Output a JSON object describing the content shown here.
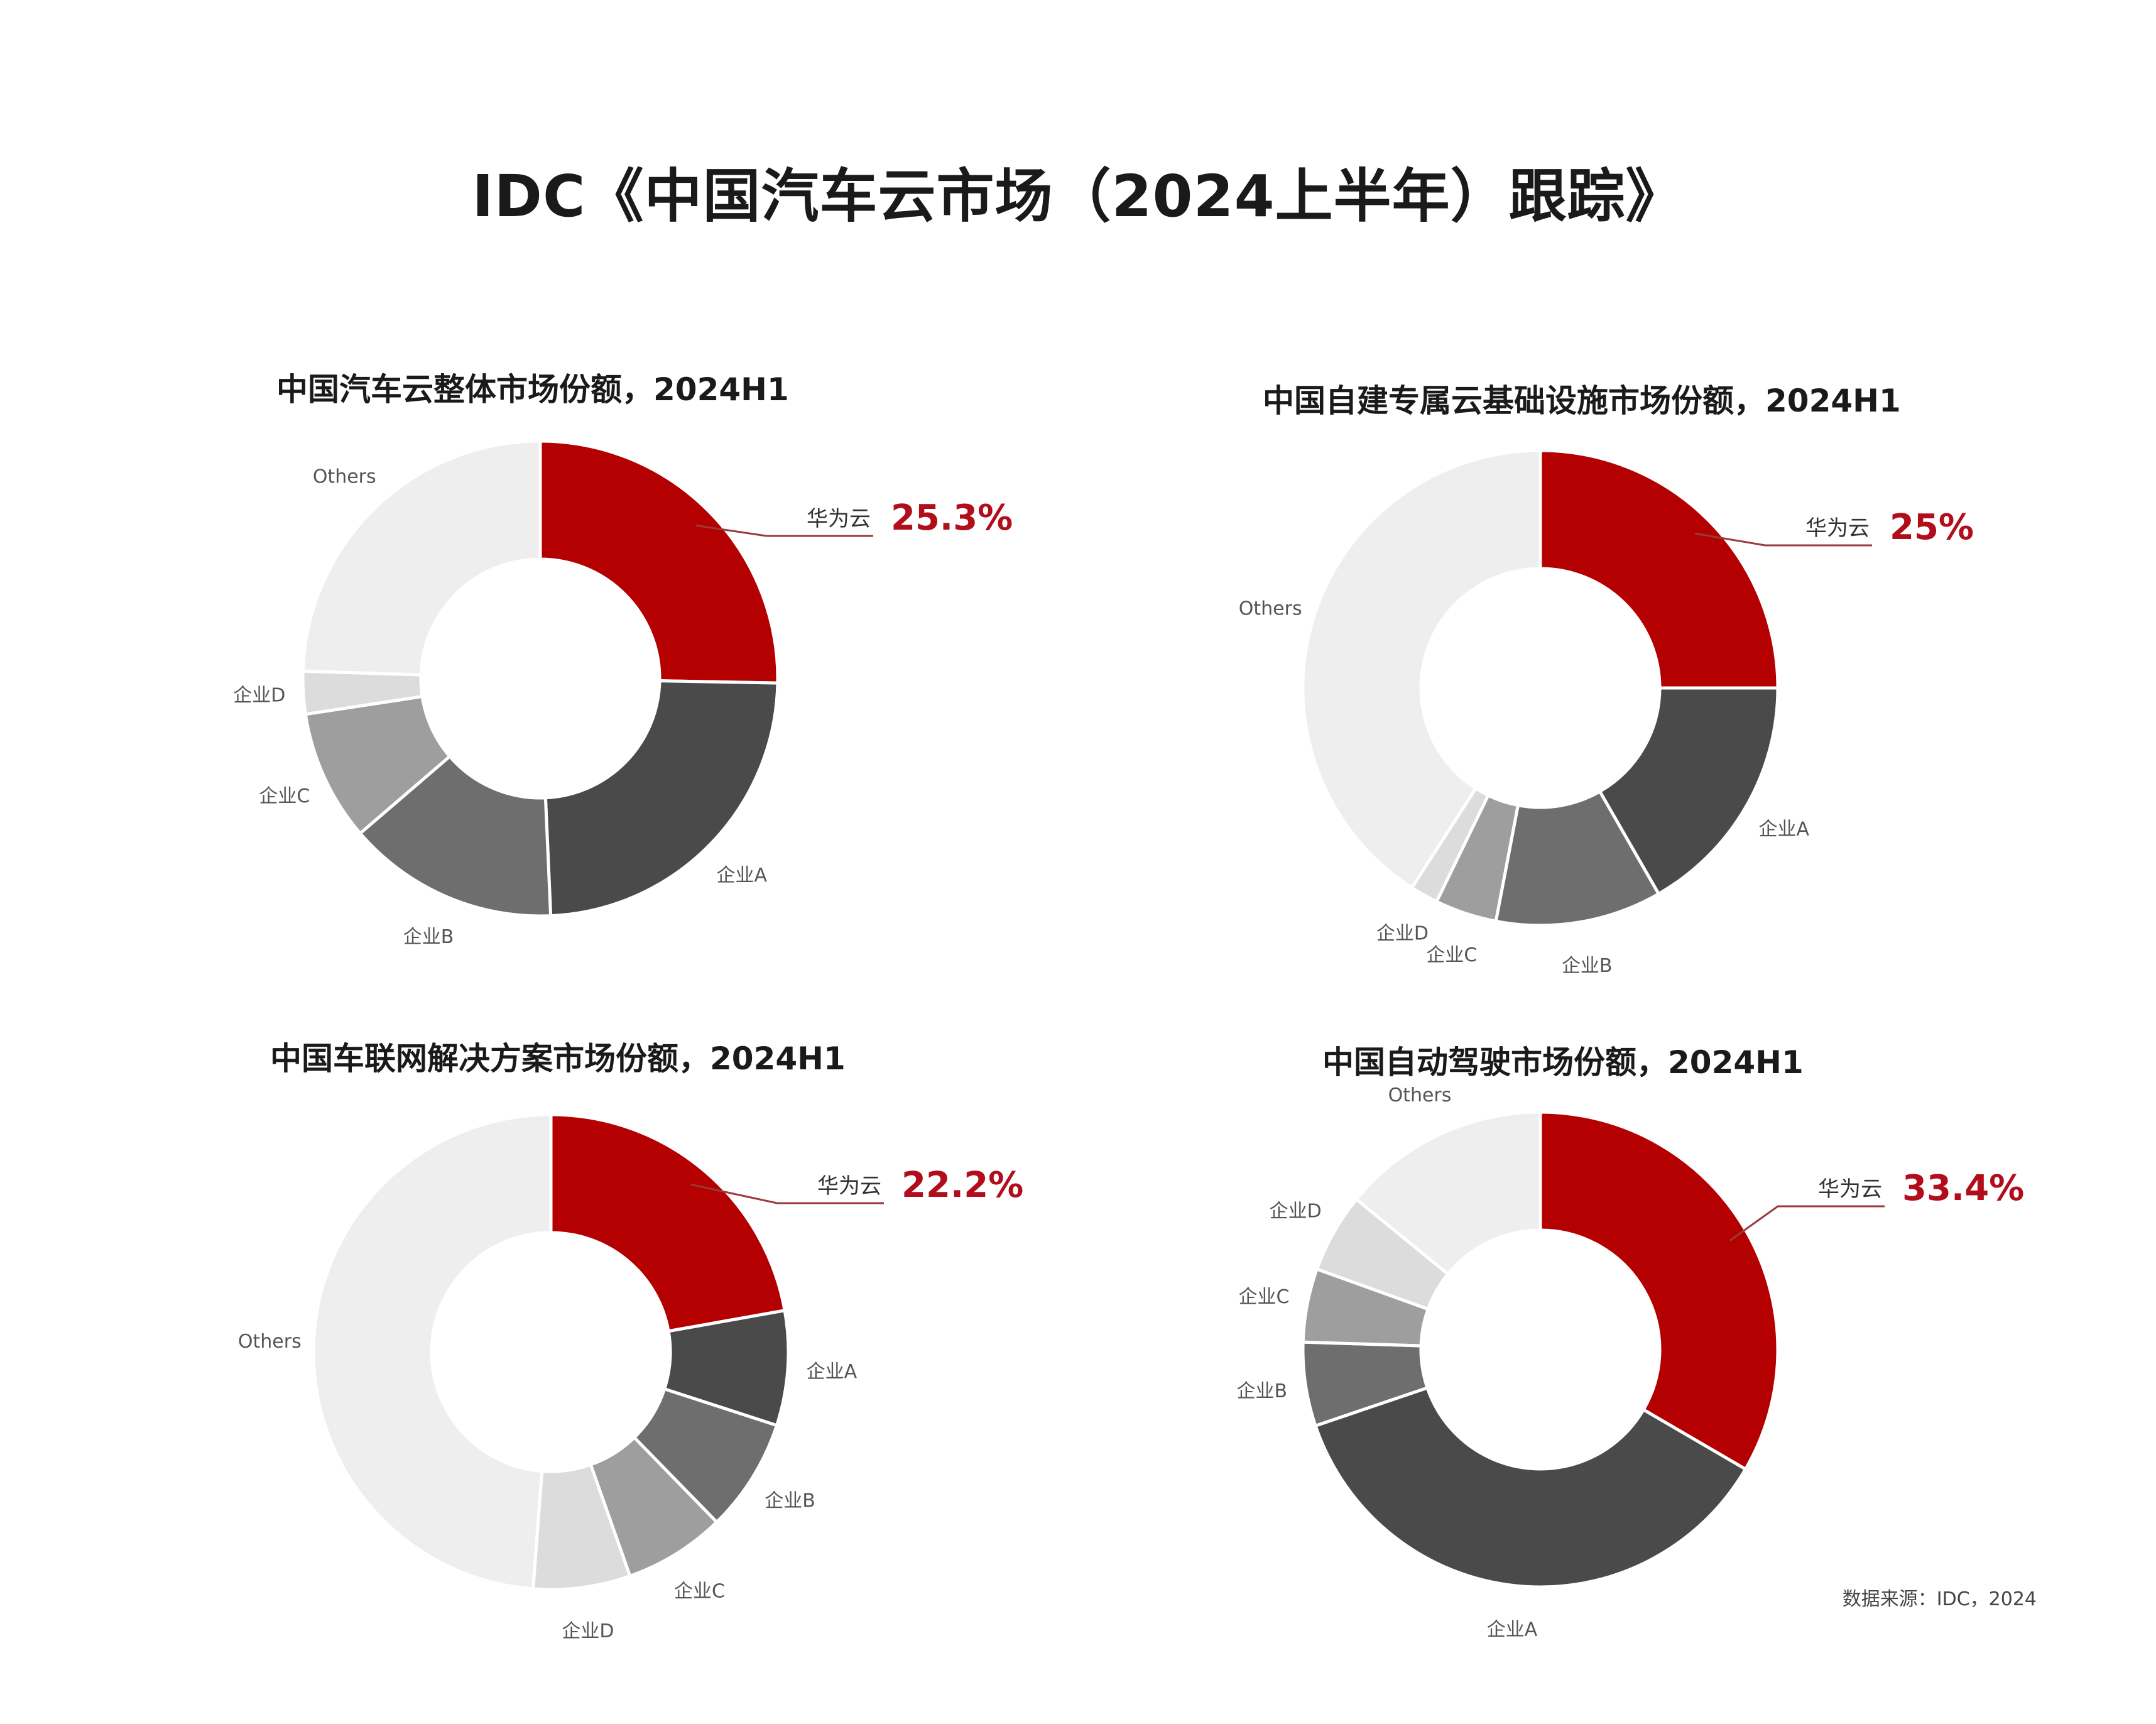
{
  "title": "IDC《中国汽车云市场（2024上半年）跟踪》",
  "source": "数据来源：IDC，2024",
  "colors": {
    "huawei": "#b40000",
    "a": "#4a4a4a",
    "b": "#6e6e6e",
    "c": "#9e9e9e",
    "d": "#dcdcdc",
    "others": "#eeeeee"
  },
  "chart_data": [
    {
      "type": "pie",
      "title": "中国汽车云整体市场份额，2024H1",
      "highlight": {
        "label": "华为云",
        "value_text": "25.3%"
      },
      "slices": [
        {
          "label": "华为云",
          "value": 25.3,
          "color": "#b40000"
        },
        {
          "label": "企业A",
          "value": 24.0,
          "color": "#4a4a4a"
        },
        {
          "label": "企业B",
          "value": 14.4,
          "color": "#6e6e6e"
        },
        {
          "label": "企业C",
          "value": 8.9,
          "color": "#9e9e9e"
        },
        {
          "label": "企业D",
          "value": 2.9,
          "color": "#dcdcdc"
        },
        {
          "label": "Others",
          "value": 24.5,
          "color": "#eeeeee"
        }
      ]
    },
    {
      "type": "pie",
      "title": "中国自建专属云基础设施市场份额，2024H1",
      "highlight": {
        "label": "华为云",
        "value_text": "25%"
      },
      "slices": [
        {
          "label": "华为云",
          "value": 25.0,
          "color": "#b40000"
        },
        {
          "label": "企业A",
          "value": 16.7,
          "color": "#4a4a4a"
        },
        {
          "label": "企业B",
          "value": 11.3,
          "color": "#6e6e6e"
        },
        {
          "label": "企业C",
          "value": 4.2,
          "color": "#9e9e9e"
        },
        {
          "label": "企业D",
          "value": 1.9,
          "color": "#dcdcdc"
        },
        {
          "label": "Others",
          "value": 40.9,
          "color": "#eeeeee"
        }
      ]
    },
    {
      "type": "pie",
      "title": "中国车联网解决方案市场份额，2024H1",
      "highlight": {
        "label": "华为云",
        "value_text": "22.2%"
      },
      "slices": [
        {
          "label": "华为云",
          "value": 22.2,
          "color": "#b40000"
        },
        {
          "label": "企业A",
          "value": 7.8,
          "color": "#4a4a4a"
        },
        {
          "label": "企业B",
          "value": 7.7,
          "color": "#6e6e6e"
        },
        {
          "label": "企业C",
          "value": 6.9,
          "color": "#9e9e9e"
        },
        {
          "label": "企业D",
          "value": 6.6,
          "color": "#dcdcdc"
        },
        {
          "label": "Others",
          "value": 48.8,
          "color": "#eeeeee"
        }
      ]
    },
    {
      "type": "pie",
      "title": "中国自动驾驶市场份额，2024H1",
      "highlight": {
        "label": "华为云",
        "value_text": "33.4%"
      },
      "slices": [
        {
          "label": "华为云",
          "value": 33.4,
          "color": "#b40000"
        },
        {
          "label": "企业A",
          "value": 36.4,
          "color": "#4a4a4a"
        },
        {
          "label": "企业B",
          "value": 5.7,
          "color": "#6e6e6e"
        },
        {
          "label": "企业C",
          "value": 5.0,
          "color": "#9e9e9e"
        },
        {
          "label": "企业D",
          "value": 5.4,
          "color": "#dcdcdc"
        },
        {
          "label": "Others",
          "value": 14.1,
          "color": "#eeeeee"
        }
      ]
    }
  ]
}
